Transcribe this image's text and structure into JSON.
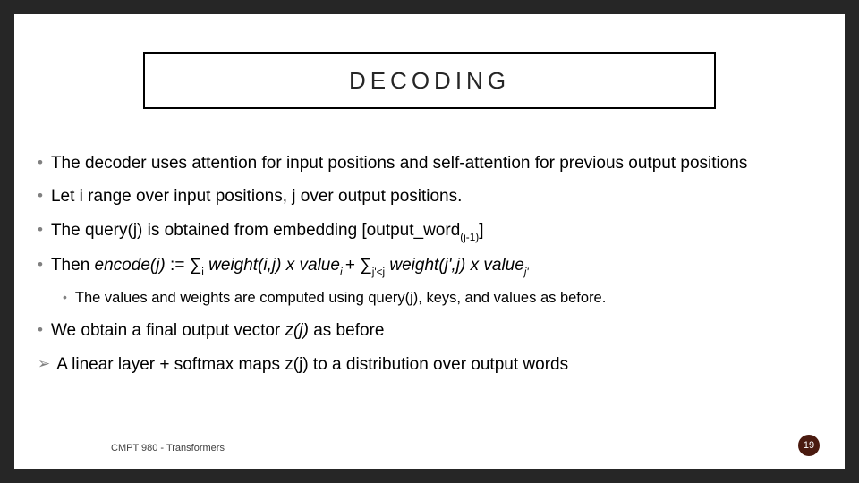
{
  "title": "DECODING",
  "bullets": {
    "b1": "The decoder uses attention for input positions and self-attention for previous output positions",
    "b2": "Let i range over input positions, j over output positions.",
    "b3_pre": "The query(j) is obtained from embedding [output_word",
    "b3_sub": "(j-1)",
    "b3_post": "]",
    "b4_a": "Then ",
    "b4_b": "encode(j)",
    "b4_c": " := ∑",
    "b4_sub1": "i",
    "b4_d": " ",
    "b4_e": "weight(i,j) x value",
    "b4_sub2": "i ",
    "b4_f": "+ ∑",
    "b4_sub3": "j'<j",
    "b4_g": " ",
    "b4_h": "weight(j',j) x value",
    "b4_sub4": "j'",
    "b5": "The values and weights are computed using query(j), keys, and values as before.",
    "b6_a": "We obtain a final output vector ",
    "b6_b": "z(j)",
    "b6_c": " as before",
    "b7": "A linear layer + softmax maps z(j) to a distribution over output words"
  },
  "footer": "CMPT 980 - Transformers",
  "page": "19",
  "colors": {
    "page_bg": "#262626",
    "slide_bg": "#ffffff",
    "title_border": "#000000",
    "bullet_dot": "#808080",
    "badge_bg": "#4a1a0f",
    "badge_text": "#ffffff",
    "footer_text": "#404040"
  },
  "typography": {
    "title_fontsize": 26,
    "title_letterspacing": 5,
    "body_fontsize": 19,
    "level2_fontsize": 16.5,
    "footer_fontsize": 11
  }
}
